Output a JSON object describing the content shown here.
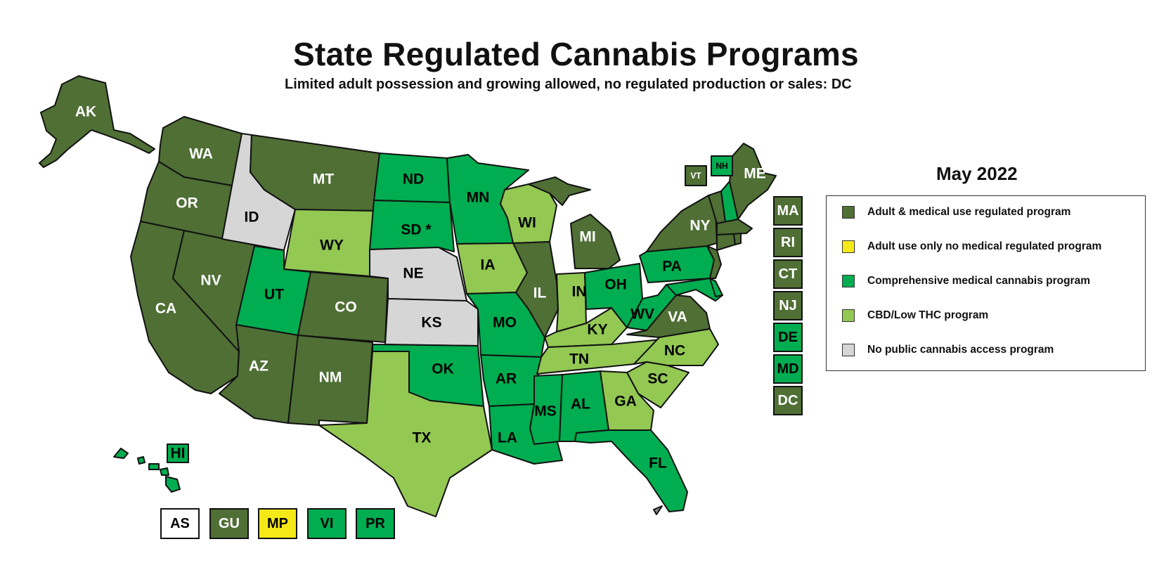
{
  "title": "State Regulated Cannabis Programs",
  "subtitle": "Limited adult possession and growing allowed, no regulated production or sales: DC",
  "legend": {
    "date": "May 2022",
    "items": [
      {
        "label": "Adult & medical use regulated program",
        "color": "#4f6f35"
      },
      {
        "label": "Adult use only no medical regulated program",
        "color": "#f5ea18"
      },
      {
        "label": "Comprehensive medical cannabis program",
        "color": "#00ad50"
      },
      {
        "label": "CBD/Low THC program",
        "color": "#93c853"
      },
      {
        "label": "No public cannabis access program",
        "color": "#d6d6d6"
      }
    ]
  },
  "colors": {
    "adult": "#4f6f35",
    "adult_only": "#f5ea18",
    "medical": "#00ad50",
    "cbd": "#93c853",
    "none": "#d6d6d6",
    "outline": "#111111"
  },
  "states": {
    "AK": "AK",
    "HI": "HI",
    "WA": "WA",
    "OR": "OR",
    "CA": "CA",
    "NV": "NV",
    "ID": "ID",
    "MT": "MT",
    "WY": "WY",
    "UT": "UT",
    "CO": "CO",
    "AZ": "AZ",
    "NM": "NM",
    "ND": "ND",
    "SD": "SD *",
    "NE": "NE",
    "KS": "KS",
    "OK": "OK",
    "TX": "TX",
    "MN": "MN",
    "IA": "IA",
    "MO": "MO",
    "AR": "AR",
    "LA": "LA",
    "WI": "WI",
    "IL": "IL",
    "MS": "MS",
    "MI": "MI",
    "IN": "IN",
    "KY": "KY",
    "TN": "TN",
    "AL": "AL",
    "OH": "OH",
    "WV": "WV",
    "VA": "VA",
    "NC": "NC",
    "SC": "SC",
    "GA": "GA",
    "FL": "FL",
    "PA": "PA",
    "NY": "NY",
    "ME": "ME",
    "VT": "VT",
    "NH": "NH"
  },
  "small_states": [
    {
      "label": "MA",
      "status": "adult"
    },
    {
      "label": "RI",
      "status": "adult"
    },
    {
      "label": "CT",
      "status": "adult"
    },
    {
      "label": "NJ",
      "status": "adult"
    },
    {
      "label": "DE",
      "status": "medical"
    },
    {
      "label": "MD",
      "status": "medical"
    },
    {
      "label": "DC",
      "status": "adult"
    }
  ],
  "territories": [
    {
      "label": "AS",
      "status": "white"
    },
    {
      "label": "GU",
      "status": "adult"
    },
    {
      "label": "MP",
      "status": "adult_only"
    },
    {
      "label": "VI",
      "status": "medical"
    },
    {
      "label": "PR",
      "status": "medical"
    }
  ]
}
